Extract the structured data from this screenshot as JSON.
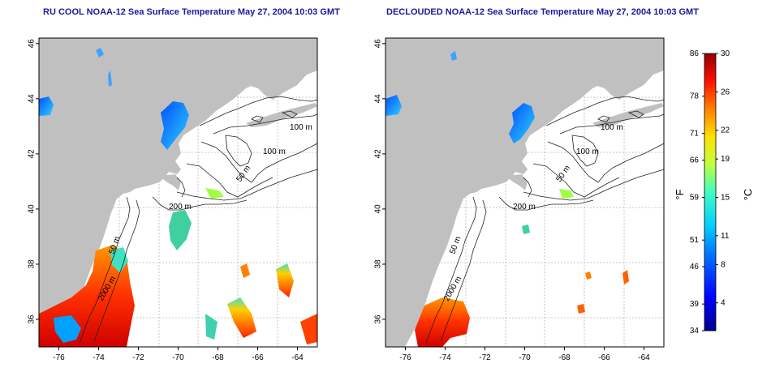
{
  "titles": {
    "left": "RU COOL NOAA-12 Sea Surface Temperature May 27, 2004 10:03 GMT",
    "right": "DECLOUDED NOAA-12 Sea Surface Temperature May 27, 2004 10:03 GMT"
  },
  "axes": {
    "lon_ticks": [
      "-76",
      "-74",
      "-72",
      "-70",
      "-68",
      "-66",
      "-64"
    ],
    "lat_ticks": [
      "36",
      "38",
      "40",
      "42",
      "44",
      "46"
    ]
  },
  "contour_labels": [
    "100 m",
    "100 m",
    "50 m",
    "200 m",
    "50 m",
    "2000 m"
  ],
  "colorbar": {
    "fahrenheit_ticks": [
      "86",
      "78",
      "71",
      "66",
      "59",
      "51",
      "46",
      "39",
      "34"
    ],
    "celsius_ticks": [
      "30",
      "26",
      "22",
      "19",
      "15",
      "11",
      "8",
      "4"
    ],
    "fahrenheit_unit": "°F",
    "celsius_unit": "°C"
  },
  "colors": {
    "land": "#c0c0c0",
    "ocean": "#ffffff",
    "title": "#1a1aa0",
    "grid": "#b5b5b5"
  }
}
